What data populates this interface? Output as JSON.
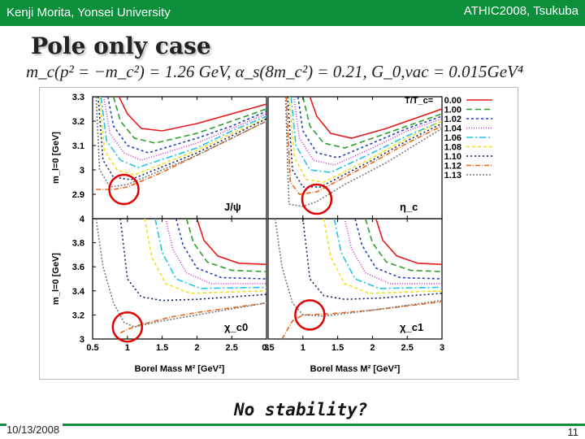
{
  "header": {
    "left": "Kenji Morita, Yonsei University",
    "right": "ATHIC2008, Tsukuba"
  },
  "slide": {
    "title": "Pole only case",
    "formula": "m_c(p² = −m_c²) = 1.26 GeV,    α_s(8m_c²) = 0.21,    G_0,vac = 0.015GeV⁴",
    "note": "No stability?",
    "date": "10/13/2008",
    "page": "11"
  },
  "colors": {
    "bar": "#0b8f3a",
    "circle": "#e00000"
  },
  "chart_data": {
    "type": "line",
    "xlabel": "Borel Mass M² [GeV²]",
    "legend": {
      "title": "T/T_c=",
      "placement": "top-right",
      "entries": [
        {
          "label": "0.00",
          "color": "#e41a1c",
          "dash": ""
        },
        {
          "label": "1.00",
          "color": "#2aa02a",
          "dash": "7,4"
        },
        {
          "label": "1.02",
          "color": "#1f3fbf",
          "dash": "3,3"
        },
        {
          "label": "1.04",
          "color": "#cc33cc",
          "dash": "1,2"
        },
        {
          "label": "1.06",
          "color": "#22c3e6",
          "dash": "8,3,2,3"
        },
        {
          "label": "1.08",
          "color": "#f2e01f",
          "dash": "4,3"
        },
        {
          "label": "1.10",
          "color": "#112266",
          "dash": "2,3"
        },
        {
          "label": "1.12",
          "color": "#e8661a",
          "dash": "6,2,1,2"
        },
        {
          "label": "1.13",
          "color": "#7a7a7a",
          "dash": "2,2"
        }
      ]
    },
    "panels": [
      {
        "name": "J/ψ",
        "ylabel": "m_l=0 [GeV]",
        "xlim": [
          0.5,
          3
        ],
        "ylim": [
          2.8,
          3.3
        ],
        "yticks": [
          "2.9",
          "3",
          "3.1",
          "3.2",
          "3.3"
        ],
        "xticks": [],
        "series": [
          {
            "x": [
              0.88,
              1.0,
              1.2,
              1.5,
              2.0,
              2.5,
              3.0
            ],
            "y": [
              3.3,
              3.23,
              3.17,
              3.16,
              3.19,
              3.23,
              3.27
            ]
          },
          {
            "x": [
              0.8,
              0.9,
              1.1,
              1.4,
              2.0,
              2.5,
              3.0
            ],
            "y": [
              3.3,
              3.2,
              3.13,
              3.11,
              3.15,
              3.2,
              3.25
            ]
          },
          {
            "x": [
              0.72,
              0.8,
              1.0,
              1.3,
              2.0,
              2.5,
              3.0
            ],
            "y": [
              3.3,
              3.18,
              3.1,
              3.07,
              3.13,
              3.18,
              3.24
            ]
          },
          {
            "x": [
              0.66,
              0.75,
              0.95,
              1.2,
              2.0,
              2.5,
              3.0
            ],
            "y": [
              3.3,
              3.15,
              3.07,
              3.04,
              3.11,
              3.17,
              3.23
            ]
          },
          {
            "x": [
              0.62,
              0.7,
              0.9,
              1.15,
              2.0,
              2.5,
              3.0
            ],
            "y": [
              3.3,
              3.12,
              3.04,
              3.01,
              3.09,
              3.16,
              3.22
            ]
          },
          {
            "x": [
              0.6,
              0.67,
              0.85,
              1.1,
              2.0,
              2.5,
              3.0
            ],
            "y": [
              3.3,
              3.08,
              3.0,
              2.98,
              3.08,
              3.15,
              3.21
            ]
          },
          {
            "x": [
              0.58,
              0.65,
              0.8,
              1.05,
              2.0,
              2.5,
              3.0
            ],
            "y": [
              3.3,
              3.04,
              2.97,
              2.96,
              3.07,
              3.14,
              3.21
            ]
          },
          {
            "x": [
              0.55,
              0.65,
              0.8,
              1.0,
              1.5,
              2.0,
              3.0
            ],
            "y": [
              2.92,
              2.92,
              2.92,
              2.93,
              2.99,
              3.06,
              3.2
            ]
          },
          {
            "x": [
              0.55,
              0.6,
              0.75,
              1.0,
              1.5,
              2.0,
              3.0
            ],
            "y": [
              3.3,
              3.0,
              2.93,
              2.94,
              3.0,
              3.06,
              3.2
            ]
          }
        ],
        "circle": {
          "x": 0.95,
          "y": 2.92
        }
      },
      {
        "name": "η_c",
        "ylabel": "",
        "xlim": [
          0.5,
          3
        ],
        "ylim": [
          2.8,
          3.3
        ],
        "yticks": [],
        "xticks": [],
        "series": [
          {
            "x": [
              1.1,
              1.2,
              1.4,
              1.7,
              2.2,
              2.6,
              3.0
            ],
            "y": [
              3.3,
              3.22,
              3.15,
              3.13,
              3.17,
              3.21,
              3.25
            ]
          },
          {
            "x": [
              1.0,
              1.1,
              1.3,
              1.6,
              2.1,
              2.6,
              3.0
            ],
            "y": [
              3.3,
              3.18,
              3.11,
              3.09,
              3.14,
              3.19,
              3.23
            ]
          },
          {
            "x": [
              0.93,
              1.0,
              1.2,
              1.5,
              2.0,
              2.5,
              3.0
            ],
            "y": [
              3.3,
              3.16,
              3.07,
              3.05,
              3.11,
              3.17,
              3.22
            ]
          },
          {
            "x": [
              0.87,
              0.95,
              1.15,
              1.45,
              2.0,
              2.5,
              3.0
            ],
            "y": [
              3.3,
              3.13,
              3.04,
              3.02,
              3.09,
              3.16,
              3.21
            ]
          },
          {
            "x": [
              0.83,
              0.9,
              1.1,
              1.4,
              2.0,
              2.5,
              3.0
            ],
            "y": [
              3.3,
              3.1,
              3.0,
              2.99,
              3.07,
              3.14,
              3.2
            ]
          },
          {
            "x": [
              0.8,
              0.88,
              1.05,
              1.3,
              2.0,
              2.5,
              3.0
            ],
            "y": [
              3.3,
              3.05,
              2.96,
              2.95,
              3.05,
              3.13,
              3.2
            ]
          },
          {
            "x": [
              0.78,
              0.85,
              1.0,
              1.25,
              2.0,
              2.5,
              3.0
            ],
            "y": [
              3.3,
              3.0,
              2.93,
              2.93,
              3.04,
              3.12,
              3.19
            ]
          },
          {
            "x": [
              0.76,
              0.82,
              0.95,
              1.2,
              2.0,
              2.5,
              3.0
            ],
            "y": [
              3.3,
              2.95,
              2.9,
              2.91,
              3.03,
              3.11,
              3.18
            ]
          },
          {
            "x": [
              0.75,
              0.8,
              1.0,
              1.2,
              1.6,
              2.2,
              3.0
            ],
            "y": [
              3.3,
              2.86,
              2.85,
              2.87,
              2.94,
              3.03,
              3.17
            ]
          }
        ],
        "circle": {
          "x": 1.2,
          "y": 2.88
        }
      },
      {
        "name": "χ_c0",
        "ylabel": "m_l=0 [GeV]",
        "xlim": [
          0.5,
          3
        ],
        "ylim": [
          3.0,
          4.0
        ],
        "yticks": [
          "3",
          "3.2",
          "3.4",
          "3.6",
          "3.8",
          "4"
        ],
        "xticks": [
          "0.5",
          "1",
          "1.5",
          "2",
          "2.5",
          "3"
        ],
        "series": [
          {
            "x": [
              2.0,
              2.1,
              2.3,
              2.6,
              3.0
            ],
            "y": [
              4.0,
              3.82,
              3.69,
              3.63,
              3.62
            ]
          },
          {
            "x": [
              1.85,
              1.95,
              2.15,
              2.5,
              3.0
            ],
            "y": [
              4.0,
              3.8,
              3.64,
              3.57,
              3.56
            ]
          },
          {
            "x": [
              1.7,
              1.8,
              2.0,
              2.35,
              3.0
            ],
            "y": [
              4.0,
              3.78,
              3.59,
              3.51,
              3.5
            ]
          },
          {
            "x": [
              1.55,
              1.65,
              1.85,
              2.2,
              3.0
            ],
            "y": [
              4.0,
              3.75,
              3.55,
              3.46,
              3.46
            ]
          },
          {
            "x": [
              1.4,
              1.5,
              1.7,
              2.05,
              3.0
            ],
            "y": [
              4.0,
              3.72,
              3.5,
              3.42,
              3.43
            ]
          },
          {
            "x": [
              1.25,
              1.35,
              1.55,
              1.9,
              3.0
            ],
            "y": [
              4.0,
              3.68,
              3.46,
              3.38,
              3.4
            ]
          },
          {
            "x": [
              0.9,
              1.0,
              1.2,
              1.5,
              2.0,
              3.0
            ],
            "y": [
              4.0,
              3.5,
              3.35,
              3.32,
              3.33,
              3.37
            ]
          },
          {
            "x": [
              0.9,
              1.0,
              1.2,
              1.6,
              2.0,
              3.0
            ],
            "y": [
              3.05,
              3.08,
              3.12,
              3.18,
              3.22,
              3.3
            ]
          },
          {
            "x": [
              0.55,
              0.65,
              0.8,
              0.95,
              1.1,
              1.5,
              3.0
            ],
            "y": [
              4.0,
              3.6,
              3.3,
              3.14,
              3.1,
              3.15,
              3.3
            ]
          }
        ],
        "circle": {
          "x": 1.0,
          "y": 3.1
        }
      },
      {
        "name": "χ_c1",
        "ylabel": "",
        "xlim": [
          0.5,
          3
        ],
        "ylim": [
          3.0,
          4.0
        ],
        "yticks": [],
        "xticks": [
          "0.5",
          "1",
          "1.5",
          "2",
          "2.5",
          "3"
        ],
        "series": [
          {
            "x": [
              2.05,
              2.15,
              2.35,
              2.65,
              3.0
            ],
            "y": [
              4.0,
              3.82,
              3.69,
              3.63,
              3.62
            ]
          },
          {
            "x": [
              1.9,
              2.0,
              2.2,
              2.55,
              3.0
            ],
            "y": [
              4.0,
              3.8,
              3.64,
              3.57,
              3.56
            ]
          },
          {
            "x": [
              1.75,
              1.85,
              2.05,
              2.4,
              3.0
            ],
            "y": [
              4.0,
              3.78,
              3.59,
              3.51,
              3.5
            ]
          },
          {
            "x": [
              1.6,
              1.7,
              1.9,
              2.25,
              3.0
            ],
            "y": [
              4.0,
              3.75,
              3.55,
              3.46,
              3.46
            ]
          },
          {
            "x": [
              1.45,
              1.55,
              1.75,
              2.1,
              3.0
            ],
            "y": [
              4.0,
              3.72,
              3.5,
              3.42,
              3.43
            ]
          },
          {
            "x": [
              1.3,
              1.4,
              1.6,
              1.95,
              3.0
            ],
            "y": [
              4.0,
              3.68,
              3.46,
              3.38,
              3.4
            ]
          },
          {
            "x": [
              1.0,
              1.1,
              1.3,
              1.6,
              2.1,
              3.0
            ],
            "y": [
              4.0,
              3.5,
              3.36,
              3.33,
              3.34,
              3.38
            ]
          },
          {
            "x": [
              0.7,
              0.85,
              1.0,
              1.4,
              2.0,
              3.0
            ],
            "y": [
              3.0,
              3.15,
              3.2,
              3.21,
              3.24,
              3.31
            ]
          },
          {
            "x": [
              0.6,
              0.7,
              0.85,
              1.0,
              1.3,
              2.0,
              3.0
            ],
            "y": [
              4.0,
              3.6,
              3.3,
              3.2,
              3.19,
              3.24,
              3.32
            ]
          }
        ],
        "circle": {
          "x": 1.1,
          "y": 3.2
        }
      }
    ]
  }
}
